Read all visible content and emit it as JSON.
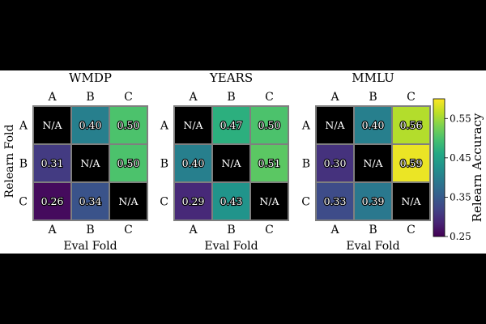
{
  "chart_data": {
    "type": "heatmap",
    "row_labels": [
      "A",
      "B",
      "C"
    ],
    "col_labels": [
      "A",
      "B",
      "C"
    ],
    "ylabel": "Relearn Fold",
    "xlabel": "Eval Fold",
    "na_label": "N/A",
    "panels": [
      {
        "title": "WMDP",
        "values": [
          [
            null,
            0.4,
            0.5
          ],
          [
            0.31,
            null,
            0.5
          ],
          [
            0.26,
            0.34,
            null
          ]
        ]
      },
      {
        "title": "YEARS",
        "values": [
          [
            null,
            0.47,
            0.5
          ],
          [
            0.4,
            null,
            0.51
          ],
          [
            0.29,
            0.43,
            null
          ]
        ]
      },
      {
        "title": "MMLU",
        "values": [
          [
            null,
            0.4,
            0.56
          ],
          [
            0.3,
            null,
            0.59
          ],
          [
            0.33,
            0.39,
            null
          ]
        ]
      }
    ],
    "colorbar": {
      "label": "Relearn Accuracy",
      "colormap": "viridis",
      "range": [
        0.25,
        0.6
      ],
      "ticks": [
        "0.25",
        "0.35",
        "0.45",
        "0.55"
      ]
    }
  }
}
